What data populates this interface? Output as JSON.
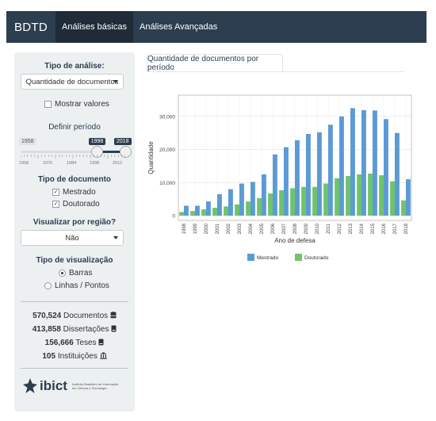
{
  "navbar": {
    "brand": "BDTD",
    "tabs": [
      {
        "label": "Análises básicas"
      },
      {
        "label": "Análises Avançadas"
      }
    ]
  },
  "sidebar": {
    "analysis_type_label": "Tipo de análise:",
    "analysis_type_value": "Quantidade de documentos",
    "show_values_label": "Mostrar valores",
    "period_label": "Definir período",
    "slider": {
      "min_label": "1958",
      "low_value": "1998",
      "high_value": "2018",
      "tick_labels": [
        "1958",
        "1970",
        "1984",
        "1998",
        "2012"
      ],
      "low_fraction": 0.725,
      "high_fraction": 1.0
    },
    "doc_type_label": "Tipo de documento",
    "doc_types": [
      {
        "label": "Mestrado",
        "checked": true
      },
      {
        "label": "Doutorado",
        "checked": true
      }
    ],
    "region_label": "Visualizar por região?",
    "region_value": "Não",
    "viz_type_label": "Tipo de visualização",
    "viz_options": [
      {
        "label": "Barras",
        "selected": true
      },
      {
        "label": "Linhas / Pontos",
        "selected": false
      }
    ],
    "stats": [
      {
        "value": "570,524",
        "label": "Documentos",
        "icon": "database-icon"
      },
      {
        "value": "413,858",
        "label": "Dissertações",
        "icon": "book-icon"
      },
      {
        "value": "156,666",
        "label": "Teses",
        "icon": "book-icon"
      },
      {
        "value": "105",
        "label": "Instituições",
        "icon": "institution-icon"
      }
    ],
    "logo_text": "ibict",
    "logo_subtext": "Instituto Brasileiro de Informação em Ciência e Tecnologia"
  },
  "main": {
    "tab_label": "Quantidade de documentos por período"
  },
  "colors": {
    "navbar": "#2c3e50",
    "mestrado": "#5b9bd5",
    "doutorado": "#70c36b"
  },
  "chart_data": {
    "type": "bar",
    "title": "",
    "xlabel": "Ano de defesa",
    "ylabel": "Quantidade",
    "categories": [
      "1998",
      "1999",
      "2000",
      "2001",
      "2002",
      "2003",
      "2004",
      "2005",
      "2006",
      "2007",
      "2008",
      "2009",
      "2010",
      "2011",
      "2012",
      "2013",
      "2014",
      "2015",
      "2016",
      "2017",
      "2018"
    ],
    "series": [
      {
        "name": "Mestrado",
        "values": [
          3000,
          3000,
          4300,
          6500,
          8000,
          9700,
          10200,
          12500,
          18500,
          20700,
          22800,
          24700,
          25200,
          27500,
          30000,
          32500,
          31900,
          31800,
          29200,
          25000,
          11000
        ]
      },
      {
        "name": "Doutorado",
        "values": [
          1100,
          1400,
          1900,
          2400,
          2800,
          3400,
          4300,
          5300,
          6700,
          7700,
          8300,
          8700,
          8700,
          9700,
          11300,
          12000,
          12500,
          12700,
          12200,
          10400,
          4600
        ]
      }
    ],
    "ylim": [
      0,
      35000
    ],
    "yticks": [
      0,
      10000,
      20000,
      30000
    ],
    "ytick_labels": [
      "0",
      "10,000",
      "20,000",
      "30,000"
    ],
    "grid": true,
    "legend_position": "bottom"
  }
}
